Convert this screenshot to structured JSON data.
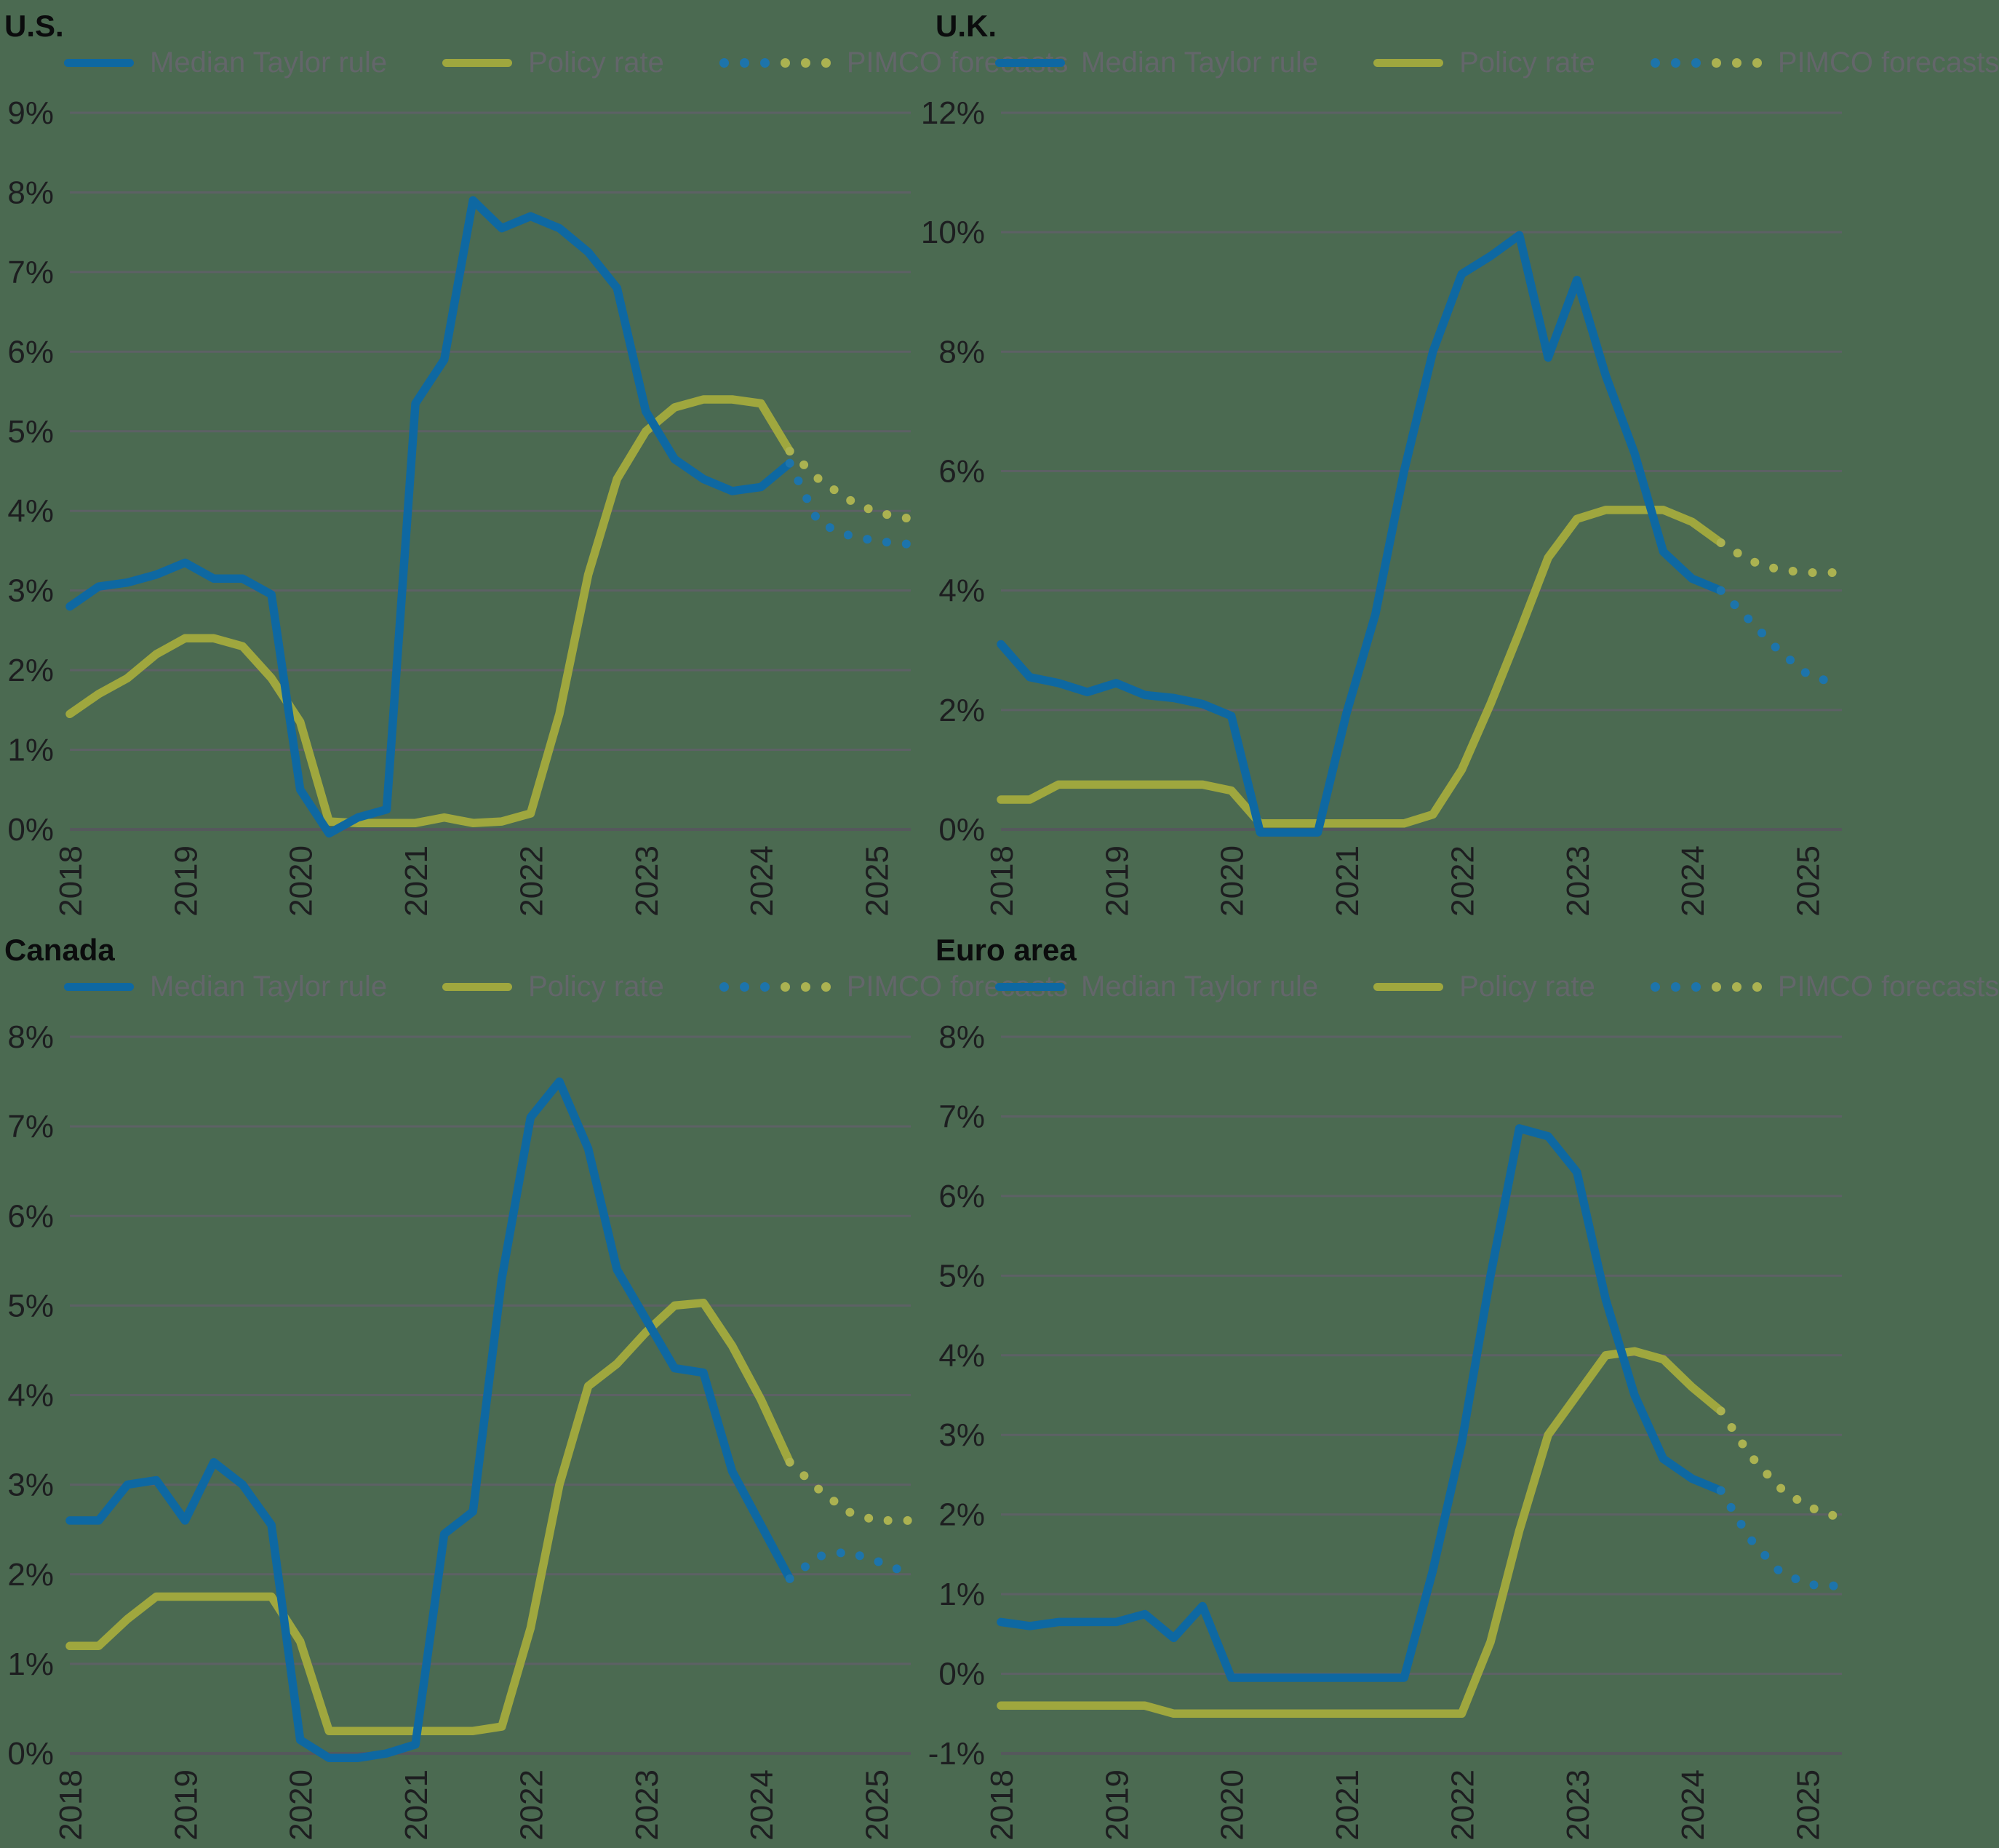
{
  "colors": {
    "background": "#4b6a51",
    "blue": "#0e68a2",
    "olive": "#9fa73e",
    "blue_forecast": "#1d74ab",
    "olive_forecast": "#abb251",
    "grid": "#5d6165",
    "axis": "#55585c",
    "axis_label": "#1d1e20",
    "legend_text": "#63666a",
    "title_text": "#0b0c0d"
  },
  "legend": {
    "taylor": "Median Taylor rule",
    "policy": "Policy rate",
    "forecast": "PIMCO forecasts"
  },
  "chart_data": {
    "type": "line",
    "x_axis": {
      "start": 2018,
      "end": 2025.3,
      "ticks": [
        2018,
        2019,
        2020,
        2021,
        2022,
        2023,
        2024,
        2025
      ],
      "tick_labels": [
        "2018",
        "2019",
        "2020",
        "2021",
        "2022",
        "2023",
        "2024",
        "2025"
      ]
    },
    "panels": [
      {
        "id": "us",
        "title": "U.S.",
        "y_axis": {
          "min": 0,
          "max": 9,
          "step": 1,
          "tick_labels": [
            "9%",
            "8%",
            "7%",
            "6%",
            "5%",
            "4%",
            "3%",
            "2%",
            "1%",
            "0%"
          ]
        },
        "taylor_rule": [
          [
            2018,
            2.8
          ],
          [
            2018.25,
            3.05
          ],
          [
            2018.5,
            3.1
          ],
          [
            2018.75,
            3.2
          ],
          [
            2019,
            3.35
          ],
          [
            2019.25,
            3.15
          ],
          [
            2019.5,
            3.15
          ],
          [
            2019.75,
            2.95
          ],
          [
            2020,
            0.5
          ],
          [
            2020.25,
            -0.05
          ],
          [
            2020.5,
            0.15
          ],
          [
            2020.75,
            0.25
          ],
          [
            2021,
            5.35
          ],
          [
            2021.25,
            5.9
          ],
          [
            2021.5,
            7.9
          ],
          [
            2021.75,
            7.55
          ],
          [
            2022,
            7.7
          ],
          [
            2022.25,
            7.55
          ],
          [
            2022.5,
            7.25
          ],
          [
            2022.75,
            6.8
          ],
          [
            2023,
            5.25
          ],
          [
            2023.25,
            4.65
          ],
          [
            2023.5,
            4.4
          ],
          [
            2023.75,
            4.25
          ],
          [
            2024,
            4.3
          ],
          [
            2024.25,
            4.6
          ]
        ],
        "policy_rate": [
          [
            2018,
            1.45
          ],
          [
            2018.25,
            1.7
          ],
          [
            2018.5,
            1.9
          ],
          [
            2018.75,
            2.2
          ],
          [
            2019,
            2.4
          ],
          [
            2019.25,
            2.4
          ],
          [
            2019.5,
            2.3
          ],
          [
            2019.75,
            1.9
          ],
          [
            2020,
            1.35
          ],
          [
            2020.25,
            0.1
          ],
          [
            2020.5,
            0.08
          ],
          [
            2020.75,
            0.08
          ],
          [
            2021,
            0.08
          ],
          [
            2021.25,
            0.15
          ],
          [
            2021.5,
            0.08
          ],
          [
            2021.75,
            0.1
          ],
          [
            2022,
            0.2
          ],
          [
            2022.25,
            1.45
          ],
          [
            2022.5,
            3.2
          ],
          [
            2022.75,
            4.4
          ],
          [
            2023,
            5.0
          ],
          [
            2023.25,
            5.3
          ],
          [
            2023.5,
            5.4
          ],
          [
            2023.75,
            5.4
          ],
          [
            2024,
            5.35
          ],
          [
            2024.25,
            4.75
          ]
        ],
        "forecast_taylor": [
          [
            2024.25,
            4.6
          ],
          [
            2024.5,
            3.85
          ],
          [
            2024.75,
            3.7
          ],
          [
            2025,
            3.62
          ],
          [
            2025.3,
            3.58
          ]
        ],
        "forecast_policy": [
          [
            2024.25,
            4.75
          ],
          [
            2024.5,
            4.4
          ],
          [
            2024.75,
            4.15
          ],
          [
            2025,
            3.98
          ],
          [
            2025.3,
            3.9
          ]
        ]
      },
      {
        "id": "uk",
        "title": "U.K.",
        "y_axis": {
          "min": 0,
          "max": 12,
          "step": 2,
          "tick_labels": [
            "12%",
            "10%",
            "8%",
            "6%",
            "4%",
            "2%",
            "0%"
          ]
        },
        "taylor_rule": [
          [
            2018,
            3.1
          ],
          [
            2018.25,
            2.55
          ],
          [
            2018.5,
            2.45
          ],
          [
            2018.75,
            2.3
          ],
          [
            2019,
            2.45
          ],
          [
            2019.25,
            2.25
          ],
          [
            2019.5,
            2.2
          ],
          [
            2019.75,
            2.1
          ],
          [
            2020,
            1.9
          ],
          [
            2020.25,
            -0.05
          ],
          [
            2020.5,
            -0.05
          ],
          [
            2020.75,
            -0.05
          ],
          [
            2021,
            1.95
          ],
          [
            2021.25,
            3.6
          ],
          [
            2021.5,
            6.0
          ],
          [
            2021.75,
            8.0
          ],
          [
            2022,
            9.3
          ],
          [
            2022.25,
            9.6
          ],
          [
            2022.5,
            9.95
          ],
          [
            2022.75,
            7.9
          ],
          [
            2023,
            9.2
          ],
          [
            2023.25,
            7.6
          ],
          [
            2023.5,
            6.3
          ],
          [
            2023.75,
            4.65
          ],
          [
            2024,
            4.2
          ],
          [
            2024.25,
            4.0
          ]
        ],
        "policy_rate": [
          [
            2018,
            0.5
          ],
          [
            2018.25,
            0.5
          ],
          [
            2018.5,
            0.75
          ],
          [
            2018.75,
            0.75
          ],
          [
            2019,
            0.75
          ],
          [
            2019.25,
            0.75
          ],
          [
            2019.5,
            0.75
          ],
          [
            2019.75,
            0.75
          ],
          [
            2020,
            0.65
          ],
          [
            2020.25,
            0.1
          ],
          [
            2020.5,
            0.1
          ],
          [
            2020.75,
            0.1
          ],
          [
            2021,
            0.1
          ],
          [
            2021.25,
            0.1
          ],
          [
            2021.5,
            0.1
          ],
          [
            2021.75,
            0.25
          ],
          [
            2022,
            1.0
          ],
          [
            2022.25,
            2.1
          ],
          [
            2022.5,
            3.3
          ],
          [
            2022.75,
            4.55
          ],
          [
            2023,
            5.2
          ],
          [
            2023.25,
            5.35
          ],
          [
            2023.5,
            5.35
          ],
          [
            2023.75,
            5.35
          ],
          [
            2024,
            5.15
          ],
          [
            2024.25,
            4.8
          ]
        ],
        "forecast_taylor": [
          [
            2024.25,
            4.0
          ],
          [
            2024.5,
            3.5
          ],
          [
            2024.75,
            3.0
          ],
          [
            2025,
            2.6
          ],
          [
            2025.3,
            2.4
          ]
        ],
        "forecast_policy": [
          [
            2024.25,
            4.8
          ],
          [
            2024.5,
            4.5
          ],
          [
            2024.75,
            4.35
          ],
          [
            2025,
            4.3
          ],
          [
            2025.3,
            4.3
          ]
        ]
      },
      {
        "id": "canada",
        "title": "Canada",
        "y_axis": {
          "min": 0,
          "max": 8,
          "step": 1,
          "tick_labels": [
            "8%",
            "7%",
            "6%",
            "5%",
            "4%",
            "3%",
            "2%",
            "1%",
            "0%"
          ]
        },
        "taylor_rule": [
          [
            2018,
            2.6
          ],
          [
            2018.25,
            2.6
          ],
          [
            2018.5,
            3.0
          ],
          [
            2018.75,
            3.05
          ],
          [
            2019,
            2.6
          ],
          [
            2019.25,
            3.25
          ],
          [
            2019.5,
            3.0
          ],
          [
            2019.75,
            2.55
          ],
          [
            2020,
            0.15
          ],
          [
            2020.25,
            -0.05
          ],
          [
            2020.5,
            -0.05
          ],
          [
            2020.75,
            0.0
          ],
          [
            2021,
            0.1
          ],
          [
            2021.25,
            2.45
          ],
          [
            2021.5,
            2.7
          ],
          [
            2021.75,
            5.3
          ],
          [
            2022,
            7.1
          ],
          [
            2022.25,
            7.5
          ],
          [
            2022.5,
            6.75
          ],
          [
            2022.75,
            5.4
          ],
          [
            2023,
            4.85
          ],
          [
            2023.25,
            4.3
          ],
          [
            2023.5,
            4.25
          ],
          [
            2023.75,
            3.15
          ],
          [
            2024,
            2.55
          ],
          [
            2024.25,
            1.95
          ]
        ],
        "policy_rate": [
          [
            2018,
            1.2
          ],
          [
            2018.25,
            1.2
          ],
          [
            2018.5,
            1.5
          ],
          [
            2018.75,
            1.75
          ],
          [
            2019,
            1.75
          ],
          [
            2019.25,
            1.75
          ],
          [
            2019.5,
            1.75
          ],
          [
            2019.75,
            1.75
          ],
          [
            2020,
            1.25
          ],
          [
            2020.25,
            0.25
          ],
          [
            2020.5,
            0.25
          ],
          [
            2020.75,
            0.25
          ],
          [
            2021,
            0.25
          ],
          [
            2021.25,
            0.25
          ],
          [
            2021.5,
            0.25
          ],
          [
            2021.75,
            0.3
          ],
          [
            2022,
            1.4
          ],
          [
            2022.25,
            3.0
          ],
          [
            2022.5,
            4.1
          ],
          [
            2022.75,
            4.35
          ],
          [
            2023,
            4.7
          ],
          [
            2023.25,
            5.0
          ],
          [
            2023.5,
            5.03
          ],
          [
            2023.75,
            4.55
          ],
          [
            2024,
            3.95
          ],
          [
            2024.25,
            3.25
          ]
        ],
        "forecast_taylor": [
          [
            2024.25,
            1.95
          ],
          [
            2024.5,
            2.2
          ],
          [
            2024.75,
            2.25
          ],
          [
            2025,
            2.15
          ],
          [
            2025.3,
            2.0
          ]
        ],
        "forecast_policy": [
          [
            2024.25,
            3.25
          ],
          [
            2024.5,
            2.95
          ],
          [
            2024.75,
            2.7
          ],
          [
            2025,
            2.6
          ],
          [
            2025.3,
            2.6
          ]
        ]
      },
      {
        "id": "euro",
        "title": "Euro area",
        "y_axis": {
          "min": -1,
          "max": 8,
          "step": 1,
          "tick_labels": [
            "8%",
            "7%",
            "6%",
            "5%",
            "4%",
            "3%",
            "2%",
            "1%",
            "0%",
            "-1%"
          ]
        },
        "taylor_rule": [
          [
            2018,
            0.65
          ],
          [
            2018.25,
            0.6
          ],
          [
            2018.5,
            0.65
          ],
          [
            2018.75,
            0.65
          ],
          [
            2019,
            0.65
          ],
          [
            2019.25,
            0.75
          ],
          [
            2019.5,
            0.45
          ],
          [
            2019.75,
            0.85
          ],
          [
            2020,
            -0.05
          ],
          [
            2020.25,
            -0.05
          ],
          [
            2020.5,
            -0.05
          ],
          [
            2020.75,
            -0.05
          ],
          [
            2021,
            -0.05
          ],
          [
            2021.25,
            -0.05
          ],
          [
            2021.5,
            -0.05
          ],
          [
            2021.75,
            1.3
          ],
          [
            2022,
            2.9
          ],
          [
            2022.25,
            5.0
          ],
          [
            2022.5,
            6.85
          ],
          [
            2022.75,
            6.75
          ],
          [
            2023,
            6.3
          ],
          [
            2023.25,
            4.7
          ],
          [
            2023.5,
            3.5
          ],
          [
            2023.75,
            2.7
          ],
          [
            2024,
            2.45
          ],
          [
            2024.25,
            2.3
          ]
        ],
        "policy_rate": [
          [
            2018,
            -0.4
          ],
          [
            2018.25,
            -0.4
          ],
          [
            2018.5,
            -0.4
          ],
          [
            2018.75,
            -0.4
          ],
          [
            2019,
            -0.4
          ],
          [
            2019.25,
            -0.4
          ],
          [
            2019.5,
            -0.5
          ],
          [
            2019.75,
            -0.5
          ],
          [
            2020,
            -0.5
          ],
          [
            2020.25,
            -0.5
          ],
          [
            2020.5,
            -0.5
          ],
          [
            2020.75,
            -0.5
          ],
          [
            2021,
            -0.5
          ],
          [
            2021.25,
            -0.5
          ],
          [
            2021.5,
            -0.5
          ],
          [
            2021.75,
            -0.5
          ],
          [
            2022,
            -0.5
          ],
          [
            2022.25,
            0.4
          ],
          [
            2022.5,
            1.8
          ],
          [
            2022.75,
            3.0
          ],
          [
            2023,
            3.5
          ],
          [
            2023.25,
            4.0
          ],
          [
            2023.5,
            4.05
          ],
          [
            2023.75,
            3.95
          ],
          [
            2024,
            3.6
          ],
          [
            2024.25,
            3.3
          ]
        ],
        "forecast_taylor": [
          [
            2024.25,
            2.3
          ],
          [
            2024.5,
            1.7
          ],
          [
            2024.75,
            1.3
          ],
          [
            2025,
            1.12
          ],
          [
            2025.3,
            1.1
          ]
        ],
        "forecast_policy": [
          [
            2024.25,
            3.3
          ],
          [
            2024.5,
            2.75
          ],
          [
            2024.75,
            2.35
          ],
          [
            2025,
            2.1
          ],
          [
            2025.3,
            1.95
          ]
        ]
      }
    ]
  }
}
